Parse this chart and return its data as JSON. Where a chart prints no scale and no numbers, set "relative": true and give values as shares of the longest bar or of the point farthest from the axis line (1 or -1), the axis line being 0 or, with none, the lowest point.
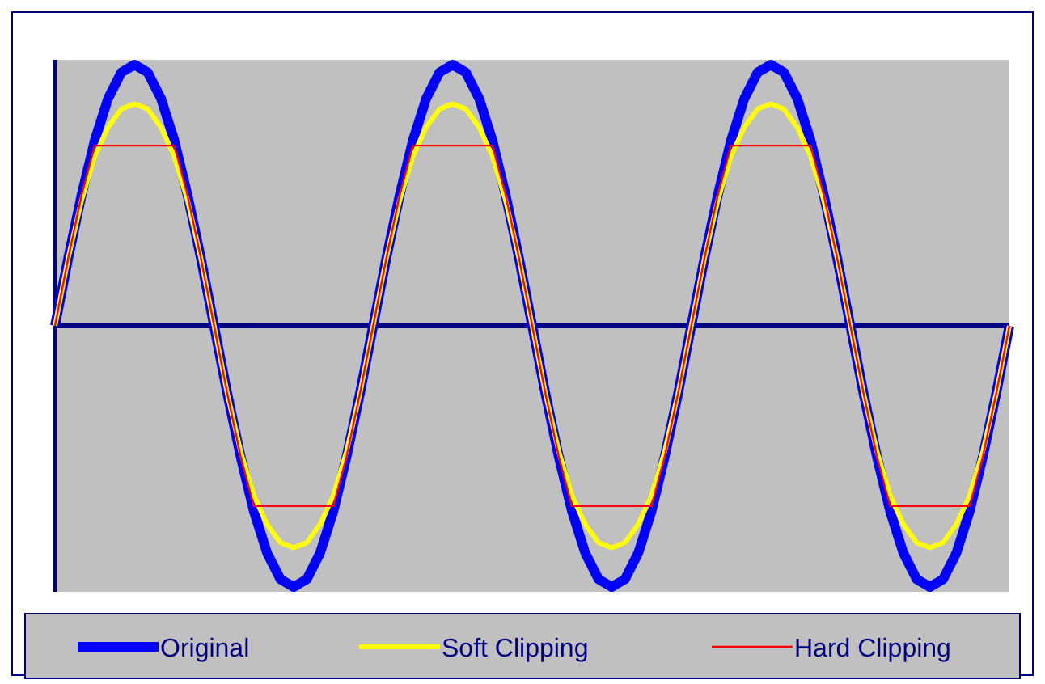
{
  "chart_data": {
    "type": "line",
    "relative": true,
    "legend": "bottom",
    "grid": false,
    "marker": "none",
    "line_style": "solid",
    "ref_lines": [
      {
        "axis": "y",
        "value": 0,
        "color": "#000080"
      }
    ],
    "categories": [
      null,
      null,
      null,
      null,
      null,
      null,
      null,
      null,
      null,
      null,
      null,
      null,
      null,
      null,
      null,
      null,
      null,
      null,
      null,
      null,
      null,
      null,
      null,
      null,
      null,
      null,
      null,
      null,
      null,
      null,
      null,
      null,
      null,
      null,
      null,
      null,
      null,
      null,
      null,
      null,
      null,
      null,
      null,
      null,
      null,
      null,
      null,
      null,
      null,
      null,
      null,
      null,
      null,
      null,
      null,
      null,
      null,
      null,
      null,
      null,
      null,
      null,
      null,
      null,
      null,
      null,
      null,
      null,
      null,
      null,
      null,
      null,
      null
    ],
    "series": [
      {
        "name": "Original",
        "color": "#0000ff",
        "values": [
          0,
          0.26,
          0.5,
          0.71,
          0.87,
          0.97,
          1,
          0.97,
          0.87,
          0.71,
          0.5,
          0.26,
          0,
          -0.26,
          -0.5,
          -0.71,
          -0.87,
          -0.97,
          -1,
          -0.97,
          -0.87,
          -0.71,
          -0.5,
          -0.26,
          0,
          0.26,
          0.5,
          0.71,
          0.87,
          0.97,
          1,
          0.97,
          0.87,
          0.71,
          0.5,
          0.26,
          0,
          -0.26,
          -0.5,
          -0.71,
          -0.87,
          -0.97,
          -1,
          -0.97,
          -0.87,
          -0.71,
          -0.5,
          -0.26,
          0,
          0.26,
          0.5,
          0.71,
          0.87,
          0.97,
          1,
          0.97,
          0.87,
          0.71,
          0.5,
          0.26,
          0,
          -0.26,
          -0.5,
          -0.71,
          -0.87,
          -0.97,
          -1,
          -0.97,
          -0.87,
          -0.71,
          -0.5,
          -0.26,
          0
        ]
      },
      {
        "name": "Soft Clipping",
        "color": "#ffff00",
        "values": [
          0,
          0.26,
          0.48,
          0.65,
          0.76,
          0.83,
          0.85,
          0.83,
          0.76,
          0.65,
          0.48,
          0.26,
          0,
          -0.26,
          -0.48,
          -0.65,
          -0.76,
          -0.83,
          -0.85,
          -0.83,
          -0.76,
          -0.65,
          -0.48,
          -0.26,
          0,
          0.26,
          0.48,
          0.65,
          0.76,
          0.83,
          0.85,
          0.83,
          0.76,
          0.65,
          0.48,
          0.26,
          0,
          -0.26,
          -0.48,
          -0.65,
          -0.76,
          -0.83,
          -0.85,
          -0.83,
          -0.76,
          -0.65,
          -0.48,
          -0.26,
          0,
          0.26,
          0.48,
          0.65,
          0.76,
          0.83,
          0.85,
          0.83,
          0.76,
          0.65,
          0.48,
          0.26,
          0,
          -0.26,
          -0.48,
          -0.65,
          -0.76,
          -0.83,
          -0.85,
          -0.83,
          -0.76,
          -0.65,
          -0.48,
          -0.26,
          0
        ]
      },
      {
        "name": "Hard Clipping",
        "color": "#ff0000",
        "values": [
          0,
          0.26,
          0.5,
          0.69,
          0.69,
          0.69,
          0.69,
          0.69,
          0.69,
          0.69,
          0.5,
          0.26,
          0,
          -0.26,
          -0.5,
          -0.69,
          -0.69,
          -0.69,
          -0.69,
          -0.69,
          -0.69,
          -0.69,
          -0.5,
          -0.26,
          0,
          0.26,
          0.5,
          0.69,
          0.69,
          0.69,
          0.69,
          0.69,
          0.69,
          0.69,
          0.5,
          0.26,
          0,
          -0.26,
          -0.5,
          -0.69,
          -0.69,
          -0.69,
          -0.69,
          -0.69,
          -0.69,
          -0.69,
          -0.5,
          -0.26,
          0,
          0.26,
          0.5,
          0.69,
          0.69,
          0.69,
          0.69,
          0.69,
          0.69,
          0.69,
          0.5,
          0.26,
          0,
          -0.26,
          -0.5,
          -0.69,
          -0.69,
          -0.69,
          -0.69,
          -0.69,
          -0.69,
          -0.69,
          -0.5,
          -0.26,
          0
        ]
      }
    ]
  }
}
